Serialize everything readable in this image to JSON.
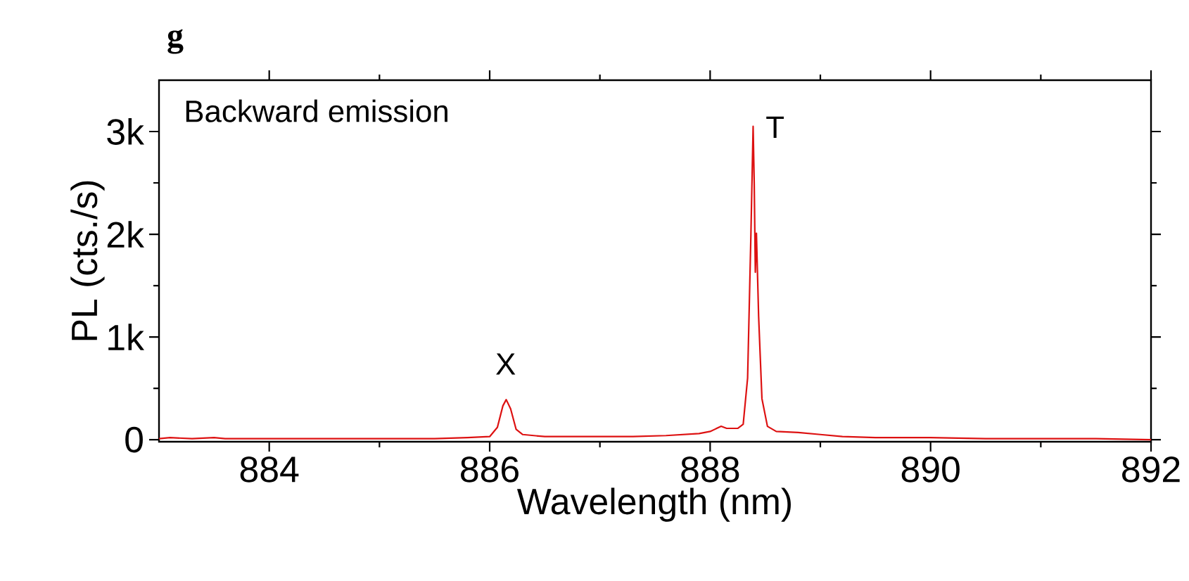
{
  "chart_data": {
    "type": "line",
    "xlabel": "Wavelength (nm)",
    "ylabel": "PL (cts./s)",
    "x": [
      883.0,
      883.1,
      883.3,
      883.5,
      883.6,
      884.0,
      884.5,
      885.0,
      885.5,
      885.8,
      886.0,
      886.07,
      886.12,
      886.15,
      886.19,
      886.24,
      886.3,
      886.5,
      886.8,
      887.0,
      887.3,
      887.6,
      887.9,
      888.0,
      888.1,
      888.15,
      888.25,
      888.3,
      888.34,
      888.37,
      888.39,
      888.4,
      888.41,
      888.42,
      888.44,
      888.47,
      888.52,
      888.6,
      888.8,
      889.0,
      889.2,
      889.5,
      890.0,
      890.5,
      891.0,
      891.5,
      892.0
    ],
    "series": [
      {
        "color": "#dd1111",
        "values": [
          10,
          20,
          10,
          20,
          10,
          10,
          10,
          10,
          10,
          20,
          30,
          120,
          330,
          390,
          300,
          100,
          50,
          30,
          30,
          30,
          30,
          40,
          60,
          80,
          130,
          110,
          110,
          150,
          600,
          2000,
          3050,
          2500,
          1630,
          2010,
          1200,
          400,
          130,
          80,
          70,
          50,
          30,
          20,
          20,
          10,
          10,
          10,
          0
        ]
      }
    ],
    "xlim": [
      883.0,
      892
    ],
    "ylim": [
      -20,
      3500
    ],
    "xticks": [
      884,
      886,
      888,
      890,
      892
    ],
    "yticks": [
      0,
      {
        "value": 1000,
        "label": "1k"
      },
      {
        "value": 2000,
        "label": "2k"
      },
      {
        "value": 3000,
        "label": "3k"
      }
    ],
    "grid": false,
    "marker": "none",
    "line_style": "solid",
    "annotations": [
      "g",
      "Backward emission",
      "X",
      "T"
    ]
  }
}
